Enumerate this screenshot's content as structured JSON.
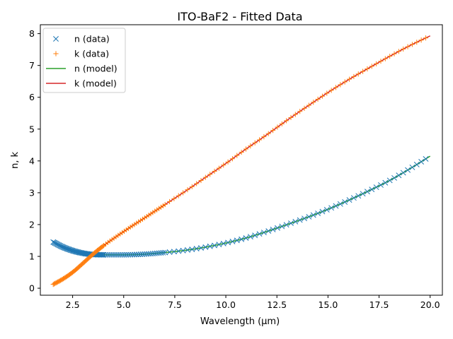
{
  "chart_data": {
    "type": "line",
    "title": "ITO-BaF2 - Fitted Data",
    "xlabel": "Wavelength (μm)",
    "ylabel": "n, k",
    "xlim": [
      0.92,
      20.6
    ],
    "ylim": [
      -0.22,
      8.28
    ],
    "x_ticks": [
      "2.5",
      "5.0",
      "7.5",
      "10.0",
      "12.5",
      "15.0",
      "17.5",
      "20.0"
    ],
    "y_ticks": [
      "0",
      "1",
      "2",
      "3",
      "4",
      "5",
      "6",
      "7",
      "8"
    ],
    "grid": false,
    "legend_position": "upper-left",
    "x_range_data": [
      1.55,
      20.0
    ],
    "series": [
      {
        "name": "n (data)",
        "kind": "markers",
        "marker": "x",
        "color": "#1f77b4",
        "points": [
          [
            1.55,
            1.45
          ],
          [
            2.0,
            1.3
          ],
          [
            2.5,
            1.18
          ],
          [
            3.0,
            1.1
          ],
          [
            3.5,
            1.06
          ],
          [
            4.0,
            1.05
          ],
          [
            5.0,
            1.05
          ],
          [
            6.0,
            1.07
          ],
          [
            7.0,
            1.12
          ],
          [
            8.0,
            1.19
          ],
          [
            9.0,
            1.29
          ],
          [
            10.0,
            1.42
          ],
          [
            11.0,
            1.58
          ],
          [
            12.0,
            1.78
          ],
          [
            13.0,
            2.0
          ],
          [
            14.0,
            2.23
          ],
          [
            15.0,
            2.48
          ],
          [
            16.0,
            2.76
          ],
          [
            17.0,
            3.06
          ],
          [
            18.0,
            3.38
          ],
          [
            19.0,
            3.75
          ],
          [
            20.0,
            4.15
          ]
        ]
      },
      {
        "name": "k (data)",
        "kind": "markers",
        "marker": "+",
        "color": "#ff7f0e",
        "points": [
          [
            1.55,
            0.12
          ],
          [
            2.0,
            0.28
          ],
          [
            2.5,
            0.5
          ],
          [
            3.0,
            0.78
          ],
          [
            3.5,
            1.07
          ],
          [
            4.0,
            1.33
          ],
          [
            5.0,
            1.78
          ],
          [
            6.0,
            2.2
          ],
          [
            7.0,
            2.62
          ],
          [
            8.0,
            3.04
          ],
          [
            9.0,
            3.48
          ],
          [
            10.0,
            3.92
          ],
          [
            11.0,
            4.38
          ],
          [
            12.0,
            4.82
          ],
          [
            13.0,
            5.28
          ],
          [
            14.0,
            5.72
          ],
          [
            15.0,
            6.15
          ],
          [
            16.0,
            6.55
          ],
          [
            17.0,
            6.92
          ],
          [
            18.0,
            7.28
          ],
          [
            19.0,
            7.62
          ],
          [
            20.0,
            7.93
          ]
        ]
      },
      {
        "name": "n (model)",
        "kind": "line",
        "color": "#2ca02c",
        "points": [
          [
            1.55,
            1.45
          ],
          [
            2.0,
            1.3
          ],
          [
            2.5,
            1.18
          ],
          [
            3.0,
            1.1
          ],
          [
            3.5,
            1.06
          ],
          [
            4.0,
            1.05
          ],
          [
            5.0,
            1.05
          ],
          [
            6.0,
            1.07
          ],
          [
            7.0,
            1.12
          ],
          [
            8.0,
            1.19
          ],
          [
            9.0,
            1.29
          ],
          [
            10.0,
            1.42
          ],
          [
            11.0,
            1.58
          ],
          [
            12.0,
            1.78
          ],
          [
            13.0,
            2.0
          ],
          [
            14.0,
            2.23
          ],
          [
            15.0,
            2.48
          ],
          [
            16.0,
            2.76
          ],
          [
            17.0,
            3.06
          ],
          [
            18.0,
            3.38
          ],
          [
            19.0,
            3.75
          ],
          [
            20.0,
            4.15
          ]
        ]
      },
      {
        "name": "k (model)",
        "kind": "line",
        "color": "#d62728",
        "points": [
          [
            1.55,
            0.12
          ],
          [
            2.0,
            0.28
          ],
          [
            2.5,
            0.5
          ],
          [
            3.0,
            0.78
          ],
          [
            3.5,
            1.07
          ],
          [
            4.0,
            1.33
          ],
          [
            5.0,
            1.78
          ],
          [
            6.0,
            2.2
          ],
          [
            7.0,
            2.62
          ],
          [
            8.0,
            3.04
          ],
          [
            9.0,
            3.48
          ],
          [
            10.0,
            3.92
          ],
          [
            11.0,
            4.38
          ],
          [
            12.0,
            4.82
          ],
          [
            13.0,
            5.28
          ],
          [
            14.0,
            5.72
          ],
          [
            15.0,
            6.15
          ],
          [
            16.0,
            6.55
          ],
          [
            17.0,
            6.92
          ],
          [
            18.0,
            7.28
          ],
          [
            19.0,
            7.62
          ],
          [
            20.0,
            7.93
          ]
        ]
      }
    ]
  }
}
